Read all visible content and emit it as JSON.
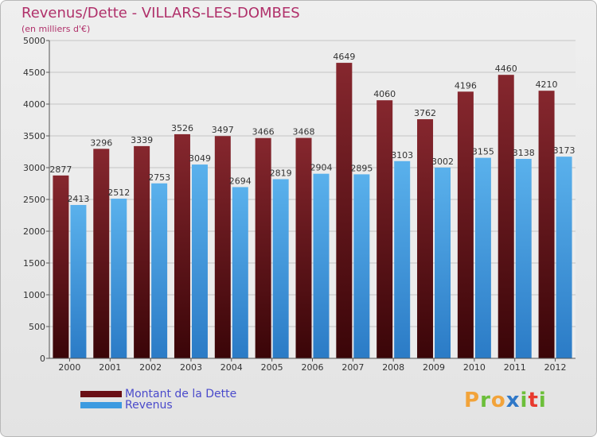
{
  "header": {
    "title": "Revenus/Dette - VILLARS-LES-DOMBES",
    "subtitle": "(en milliers d'€)"
  },
  "colors": {
    "dette": "#7a1f26",
    "dette_dark": "#3a0508",
    "revenus": "#5ab1ec",
    "revenus_dark": "#2b7bc6",
    "title": "#b0306a",
    "legend_text": "#4a4acb"
  },
  "legend": {
    "items": [
      {
        "label": "Montant de la Dette",
        "color": "#6a0f15"
      },
      {
        "label": "Revenus",
        "color": "#3d9be0"
      }
    ]
  },
  "logo": {
    "letters": [
      "P",
      "r",
      "o",
      "x",
      "i",
      "t",
      "i"
    ],
    "colors": [
      "#f2a33a",
      "#6cbf3a",
      "#f2a33a",
      "#2f78c8",
      "#6cbf3a",
      "#e8392e",
      "#6cbf3a"
    ]
  },
  "chart_data": {
    "type": "bar",
    "title": "Revenus/Dette - VILLARS-LES-DOMBES",
    "subtitle": "(en milliers d'€)",
    "categories": [
      "2000",
      "2001",
      "2002",
      "2003",
      "2004",
      "2005",
      "2006",
      "2007",
      "2008",
      "2009",
      "2010",
      "2011",
      "2012"
    ],
    "series": [
      {
        "name": "Montant de la Dette",
        "values": [
          2877,
          3296,
          3339,
          3526,
          3497,
          3466,
          3468,
          4649,
          4060,
          3762,
          4196,
          4460,
          4210
        ]
      },
      {
        "name": "Revenus",
        "values": [
          2413,
          2512,
          2753,
          3049,
          2694,
          2819,
          2904,
          2895,
          3103,
          3002,
          3155,
          3138,
          3173
        ]
      }
    ],
    "ylim": [
      0,
      5000
    ],
    "yticks": [
      0,
      500,
      1000,
      1500,
      2000,
      2500,
      3000,
      3500,
      4000,
      4500,
      5000
    ],
    "grid": true,
    "legend_position": "bottom-left"
  }
}
